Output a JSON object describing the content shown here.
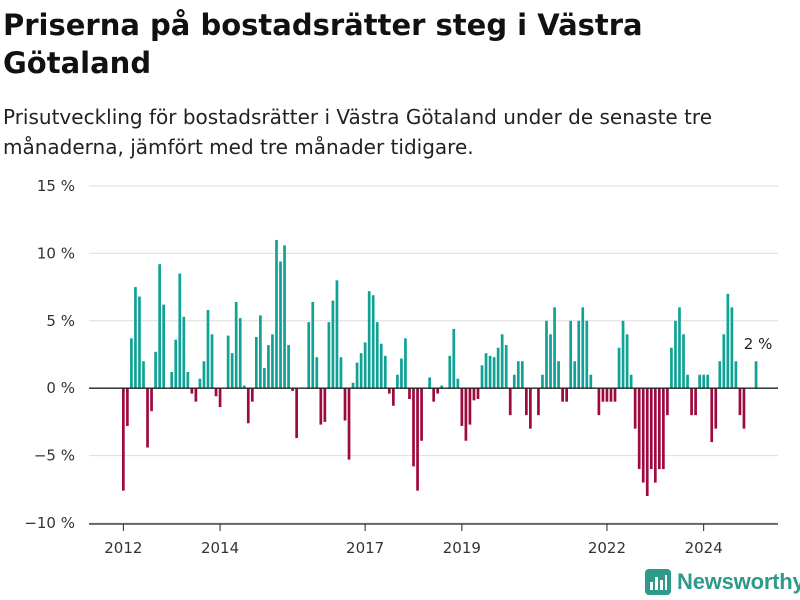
{
  "title": "Priserna på bostadsrätter steg i Västra Götaland",
  "subtitle": "Prisutveckling för bostadsrätter i Västra Götaland under de senaste tre månaderna, jämfört med tre månader tidigare.",
  "brand": {
    "name": "Newsworthy",
    "icon": "newsworthy-logo-icon",
    "color": "#2e9a8a"
  },
  "colors": {
    "positive": "#10a395",
    "negative": "#9e0a3f",
    "grid": "#dddddd",
    "zero": "#222222"
  },
  "chart_data": {
    "type": "bar",
    "title": "Priserna på bostadsrätter steg i Västra Götaland",
    "xlabel": "",
    "ylabel": "",
    "ylim": [
      -10,
      15
    ],
    "yticks": [
      {
        "value": 15,
        "label": "15 %"
      },
      {
        "value": 10,
        "label": "10 %"
      },
      {
        "value": 5,
        "label": "5 %"
      },
      {
        "value": 0,
        "label": "0 %"
      },
      {
        "value": -5,
        "label": "−5 %"
      },
      {
        "value": -10,
        "label": "−10 %"
      }
    ],
    "xticks": [
      {
        "index": 0,
        "label": "2012"
      },
      {
        "index": 24,
        "label": "2014"
      },
      {
        "index": 60,
        "label": "2017"
      },
      {
        "index": 84,
        "label": "2019"
      },
      {
        "index": 120,
        "label": "2022"
      },
      {
        "index": 144,
        "label": "2024"
      }
    ],
    "grid": true,
    "legend": "none",
    "first_period": "2012-01",
    "frequency": "monthly",
    "values": [
      -7.6,
      -2.8,
      3.7,
      7.5,
      6.8,
      2.0,
      -4.4,
      -1.7,
      2.7,
      9.2,
      6.2,
      0.0,
      1.2,
      3.6,
      8.5,
      5.3,
      1.2,
      -0.4,
      -1.0,
      0.7,
      2.0,
      5.8,
      4.0,
      -0.6,
      -1.4,
      0.0,
      3.9,
      2.6,
      6.4,
      5.2,
      0.2,
      -2.6,
      -1.0,
      3.8,
      5.4,
      1.5,
      3.2,
      4.0,
      11.0,
      9.4,
      10.6,
      3.2,
      -0.2,
      -3.7,
      0.0,
      0.0,
      4.9,
      6.4,
      2.3,
      -2.7,
      -2.5,
      4.9,
      6.5,
      8.0,
      2.3,
      -2.4,
      -5.3,
      0.4,
      1.9,
      2.6,
      3.4,
      7.2,
      6.9,
      4.9,
      3.3,
      2.4,
      -0.4,
      -1.3,
      1.0,
      2.2,
      3.7,
      -0.8,
      -5.8,
      -7.6,
      -3.9,
      0.0,
      0.8,
      -1.0,
      -0.4,
      0.2,
      0.0,
      2.4,
      4.4,
      0.7,
      -2.8,
      -3.9,
      -2.7,
      -0.9,
      -0.8,
      1.7,
      2.6,
      2.4,
      2.3,
      3.0,
      4.0,
      3.2,
      -2.0,
      1.0,
      2.0,
      2.0,
      -2.0,
      -3.0,
      0.0,
      -2.0,
      1.0,
      5.0,
      4.0,
      6.0,
      2.0,
      -1.0,
      -1.0,
      5.0,
      2.0,
      5.0,
      6.0,
      5.0,
      1.0,
      0.0,
      -2.0,
      -1.0,
      -1.0,
      -1.0,
      -1.0,
      3.0,
      5.0,
      4.0,
      1.0,
      -3.0,
      -6.0,
      -7.0,
      -8.0,
      -6.0,
      -7.0,
      -6.0,
      -6.0,
      -2.0,
      3.0,
      5.0,
      6.0,
      4.0,
      1.0,
      -2.0,
      -2.0,
      1.0,
      1.0,
      1.0,
      -4.0,
      -3.0,
      2.0,
      4.0,
      7.0,
      6.0,
      2.0,
      -2.0,
      -3.0,
      0.0,
      0.0,
      2.0
    ],
    "annotations": [
      {
        "index": 157,
        "label": "2 %"
      }
    ]
  }
}
